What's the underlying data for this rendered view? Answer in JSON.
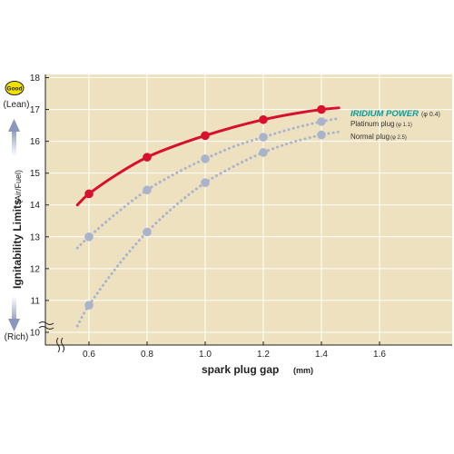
{
  "colors": {
    "plot_bg": "#ede1bf",
    "grid": "#ffffff",
    "iridium": "#d6102d",
    "iridium_label": "#0a9a9a",
    "gray_series": "#a9b4cc",
    "badge": "#f2e100",
    "arrow": "#8a97bb"
  },
  "chart_data": {
    "type": "line",
    "xlabel": "spark plug gap",
    "xlabel_unit": "(mm)",
    "ylabel": "Ignitability Limits",
    "ylabel_sub": "(Air/Fuel)",
    "y_top_label": "(Lean)",
    "y_bottom_label": "(Rich)",
    "good_badge": "Good",
    "xlim": [
      0.45,
      1.85
    ],
    "ylim": [
      9.6,
      18.1
    ],
    "x_ticks": [
      "0.6",
      "0.8",
      "1.0",
      "1.2",
      "1.4",
      "1.6"
    ],
    "y_ticks": [
      "10",
      "11",
      "12",
      "13",
      "14",
      "15",
      "16",
      "17",
      "18"
    ],
    "axis_break": true,
    "grid": true,
    "series": [
      {
        "name": "IRIDIUM POWER",
        "note": "(φ 0.4)",
        "style": "solid",
        "color_key": "iridium",
        "curve_x": [
          0.56,
          0.6,
          0.7,
          0.8,
          0.9,
          1.0,
          1.1,
          1.2,
          1.3,
          1.4,
          1.46
        ],
        "curve_y": [
          14.0,
          14.35,
          14.98,
          15.5,
          15.87,
          16.18,
          16.45,
          16.68,
          16.86,
          17.0,
          17.05
        ],
        "markers_x": [
          0.6,
          0.8,
          1.0,
          1.2,
          1.4
        ],
        "markers_y": [
          14.35,
          15.5,
          16.18,
          16.68,
          17.0
        ]
      },
      {
        "name": "Platinum plug",
        "note": "(φ 1.1)",
        "style": "dotted",
        "color_key": "gray_series",
        "curve_x": [
          0.56,
          0.6,
          0.7,
          0.8,
          0.9,
          1.0,
          1.1,
          1.2,
          1.3,
          1.4,
          1.46
        ],
        "curve_y": [
          12.65,
          13.0,
          13.78,
          14.47,
          15.0,
          15.45,
          15.84,
          16.13,
          16.4,
          16.62,
          16.72
        ],
        "markers_x": [
          0.6,
          0.8,
          1.0,
          1.2,
          1.4
        ],
        "markers_y": [
          13.0,
          14.47,
          15.45,
          16.13,
          16.62
        ]
      },
      {
        "name": "Normal plug",
        "note": "(φ 2.5)",
        "style": "dotted",
        "color_key": "gray_series",
        "curve_x": [
          0.56,
          0.6,
          0.7,
          0.8,
          0.9,
          1.0,
          1.1,
          1.2,
          1.3,
          1.4,
          1.46
        ],
        "curve_y": [
          10.2,
          10.85,
          12.1,
          13.15,
          14.0,
          14.7,
          15.22,
          15.65,
          15.97,
          16.2,
          16.3
        ],
        "markers_x": [
          0.6,
          0.8,
          1.0,
          1.2,
          1.4
        ],
        "markers_y": [
          10.85,
          13.15,
          14.7,
          15.65,
          16.2
        ]
      }
    ]
  }
}
